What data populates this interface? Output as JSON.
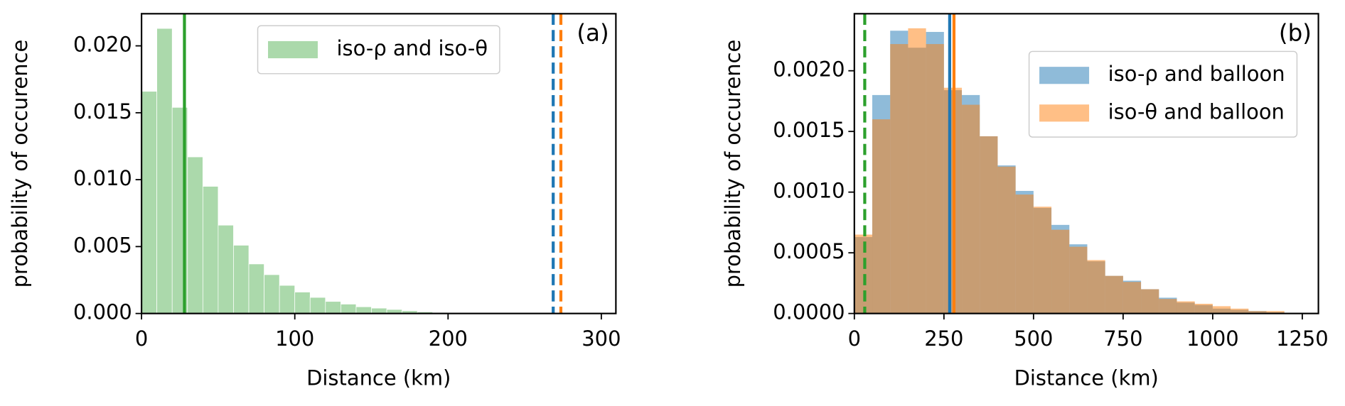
{
  "chart_data": [
    {
      "type": "histogram",
      "panel_label": "(a)",
      "x_label": "Distance (km)",
      "y_label": "probability of occurence",
      "bins": [
        0,
        10,
        20,
        30,
        40,
        50,
        60,
        70,
        80,
        90,
        100,
        110,
        120,
        130,
        140,
        150,
        160,
        170,
        180,
        190,
        200,
        210
      ],
      "series": [
        {
          "name": "iso-ρ and iso-θ",
          "color": "#2ca02c",
          "values": [
            0.0166,
            0.0213,
            0.0154,
            0.0117,
            0.0095,
            0.0066,
            0.0051,
            0.0037,
            0.0029,
            0.0021,
            0.0016,
            0.0012,
            0.0009,
            0.0007,
            0.0005,
            0.0004,
            0.0003,
            0.0002,
            0.00012,
            8e-05,
            3e-05
          ]
        }
      ],
      "alpha": 0.4,
      "vlines": [
        {
          "x": 28,
          "color": "#2ca02c",
          "style": "solid"
        },
        {
          "x": 268.6,
          "color": "#1f77b4",
          "style": "dashed"
        },
        {
          "x": 273.6,
          "color": "#ff7f0e",
          "style": "dashed"
        }
      ],
      "xlim": [
        0,
        309.5
      ],
      "ylim": [
        0,
        0.0224
      ],
      "xticks": [
        0,
        100,
        200,
        300
      ],
      "yticks": [
        {
          "value": 0,
          "label": "0.000"
        },
        {
          "value": 0.005,
          "label": "0.005"
        },
        {
          "value": 0.01,
          "label": "0.010"
        },
        {
          "value": 0.015,
          "label": "0.015"
        },
        {
          "value": 0.02,
          "label": "0.020"
        }
      ],
      "legend": "upper center"
    },
    {
      "type": "histogram",
      "panel_label": "(b)",
      "x_label": "Distance (km)",
      "y_label": "probability of occurence",
      "bins": [
        0,
        50,
        100,
        150,
        200,
        250,
        300,
        350,
        400,
        450,
        500,
        550,
        600,
        650,
        700,
        750,
        800,
        850,
        900,
        950,
        1000,
        1050,
        1100,
        1150,
        1200
      ],
      "series": [
        {
          "name": "iso-ρ and balloon",
          "color": "#1f77b4",
          "values": [
            0.00063,
            0.0018,
            0.00233,
            0.00219,
            0.00232,
            0.00184,
            0.0018,
            0.00146,
            0.00122,
            0.00101,
            0.00087,
            0.00073,
            0.00057,
            0.00043,
            0.00031,
            0.00027,
            0.0002,
            0.00013,
            9e-05,
            7e-05,
            4e-05,
            3e-05,
            2e-05,
            1e-05
          ]
        },
        {
          "name": "iso-θ and balloon",
          "color": "#ff7f0e",
          "values": [
            0.00065,
            0.0016,
            0.00222,
            0.00235,
            0.00222,
            0.00186,
            0.00172,
            0.00146,
            0.00121,
            0.00098,
            0.00088,
            0.00069,
            0.00055,
            0.00044,
            0.00031,
            0.00026,
            0.0002,
            0.00012,
            0.0001,
            8e-05,
            6e-05,
            4e-05,
            2e-05,
            2e-05
          ]
        }
      ],
      "alpha": 0.5,
      "vlines": [
        {
          "x": 29,
          "color": "#2ca02c",
          "style": "dashed"
        },
        {
          "x": 266,
          "color": "#1f77b4",
          "style": "solid"
        },
        {
          "x": 278,
          "color": "#ff7f0e",
          "style": "solid"
        }
      ],
      "xlim": [
        0,
        1295
      ],
      "ylim": [
        0,
        0.00247
      ],
      "xticks": [
        0,
        250,
        500,
        750,
        1000,
        1250
      ],
      "yticks": [
        {
          "value": 0,
          "label": "0.0000"
        },
        {
          "value": 0.0005,
          "label": "0.0005"
        },
        {
          "value": 0.001,
          "label": "0.0010"
        },
        {
          "value": 0.0015,
          "label": "0.0015"
        },
        {
          "value": 0.002,
          "label": "0.0020"
        }
      ],
      "legend": "upper right"
    }
  ]
}
